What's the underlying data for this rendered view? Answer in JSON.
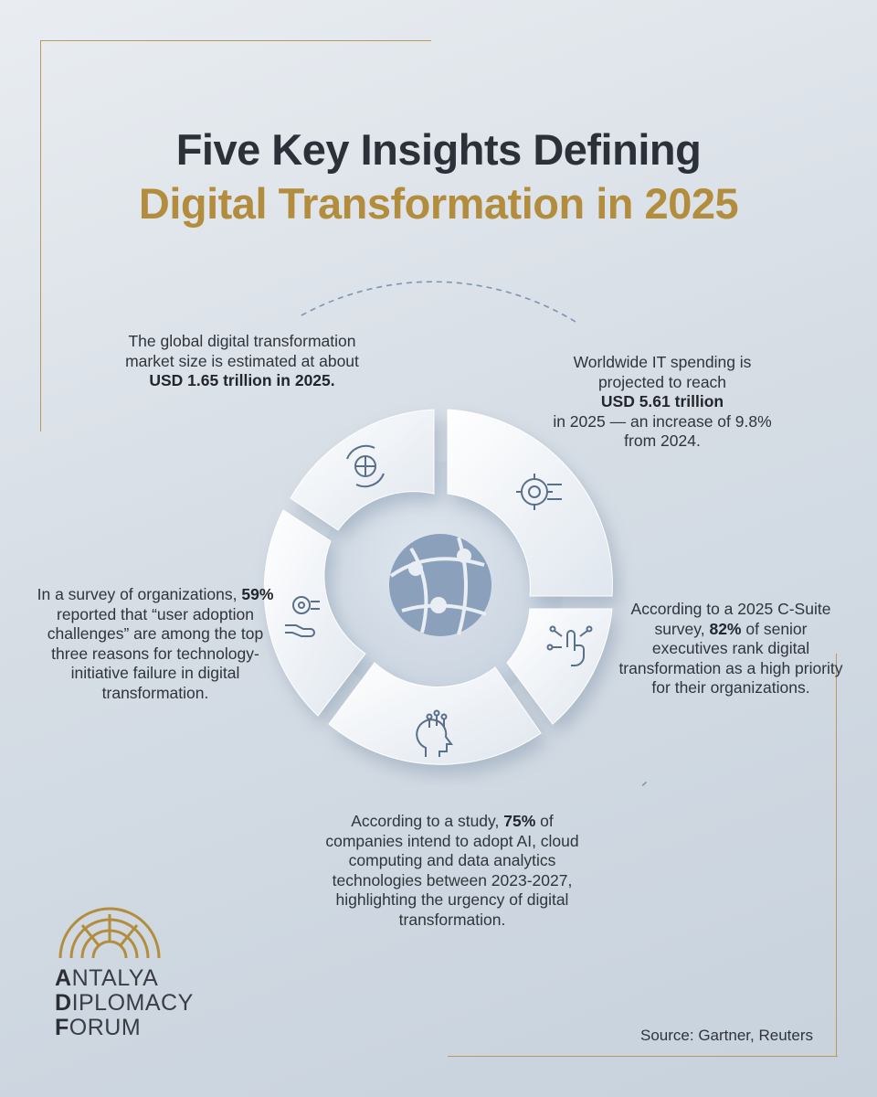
{
  "title": {
    "line1": "Five Key Insights Defining",
    "line2": "Digital Transformation in 2025"
  },
  "insights": [
    {
      "id": "market-size",
      "before": "The global digital transformation market size is estimated at about",
      "bold": "USD 1.65 trillion in 2025.",
      "after": ""
    },
    {
      "id": "it-spending",
      "before": "Worldwide IT spending is projected to reach",
      "bold": "USD 5.61 trillion",
      "after": "in 2025 — an increase of 9.8% from 2024."
    },
    {
      "id": "csuite-survey",
      "before": "According to a 2025 C-Suite survey,",
      "bold": "82%",
      "after": "of senior executives rank digital transformation as a high priority for their organizations."
    },
    {
      "id": "user-adoption",
      "before": "In a survey of organizations,",
      "bold": "59%",
      "after": "reported that “user adoption challenges” are among the top three reasons for technology-initiative failure in digital transformation."
    },
    {
      "id": "ai-cloud",
      "before": "According to a study,",
      "bold": "75%",
      "after": "of companies intend to adopt AI, cloud computing and data analytics technologies between 2023-2027, highlighting the urgency of digital transformation."
    }
  ],
  "icons": [
    "globe-cycle-icon",
    "gear-network-icon",
    "touch-network-icon",
    "brain-head-icon",
    "hand-gear-icon",
    "globe-network-icon"
  ],
  "logo": {
    "line1_cap": "A",
    "line1_rest": "NTALYA",
    "line2_cap": "D",
    "line2_rest": "IPLOMACY",
    "line3_cap": "F",
    "line3_rest": "ORUM"
  },
  "source": "Source: Gartner, Reuters",
  "colors": {
    "gold": "#b38d3e",
    "dark": "#2c3038",
    "icon": "#5a6f8a",
    "globe": "#8aa0bb"
  }
}
